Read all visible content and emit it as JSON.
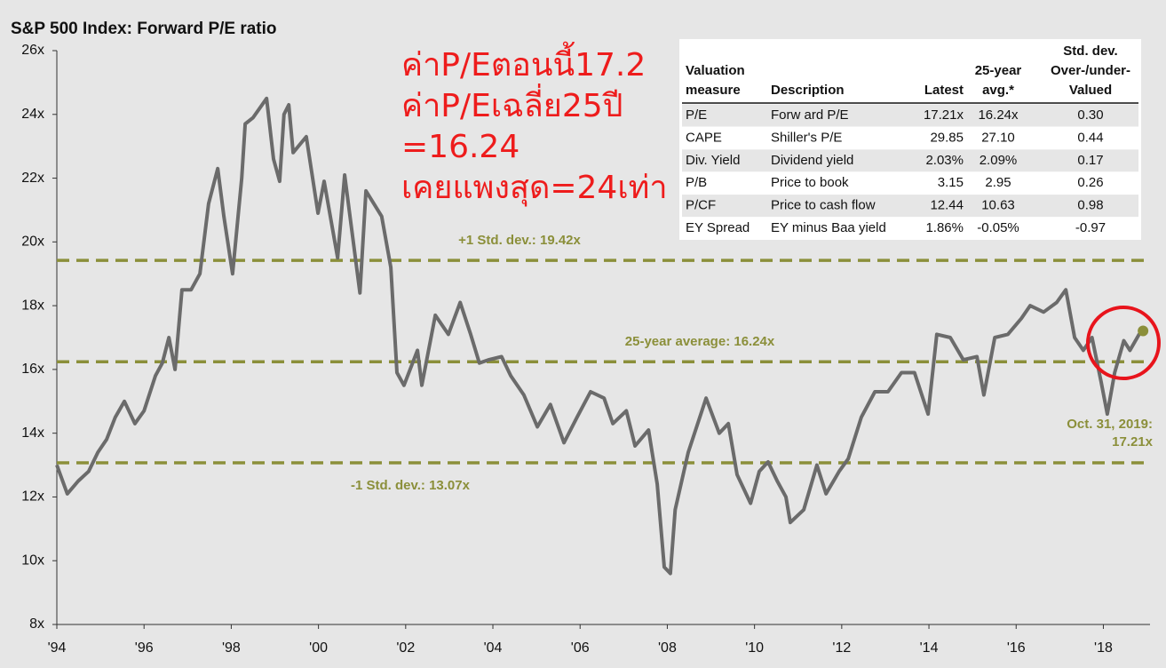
{
  "chart_data": {
    "type": "line",
    "title": "S&P 500 Index: Forward P/E ratio",
    "x": [
      1994.0,
      1994.24,
      1994.49,
      1994.73,
      1994.94,
      1995.14,
      1995.34,
      1995.55,
      1995.79,
      1996.0,
      1996.26,
      1996.42,
      1996.57,
      1996.71,
      1996.87,
      1997.08,
      1997.28,
      1997.48,
      1997.69,
      1997.83,
      1998.03,
      1998.24,
      1998.32,
      1998.5,
      1998.81,
      1998.97,
      1999.11,
      1999.21,
      1999.32,
      1999.42,
      1999.72,
      1999.99,
      2000.13,
      2000.44,
      2000.6,
      2000.95,
      2001.09,
      2001.45,
      2001.66,
      2001.8,
      2001.96,
      2002.27,
      2002.37,
      2002.68,
      2002.98,
      2003.25,
      2003.49,
      2003.69,
      2003.9,
      2004.2,
      2004.41,
      2004.71,
      2005.02,
      2005.32,
      2005.63,
      2005.93,
      2006.24,
      2006.55,
      2006.75,
      2007.06,
      2007.26,
      2007.57,
      2007.77,
      2007.93,
      2008.07,
      2008.18,
      2008.48,
      2008.89,
      2009.19,
      2009.4,
      2009.6,
      2009.91,
      2010.11,
      2010.31,
      2010.52,
      2010.72,
      2010.82,
      2011.13,
      2011.43,
      2011.64,
      2011.94,
      2012.15,
      2012.45,
      2012.76,
      2013.06,
      2013.37,
      2013.67,
      2013.98,
      2014.18,
      2014.49,
      2014.79,
      2015.1,
      2015.26,
      2015.51,
      2015.81,
      2016.12,
      2016.32,
      2016.63,
      2016.93,
      2017.14,
      2017.34,
      2017.54,
      2017.74,
      2017.95,
      2018.09,
      2018.26,
      2018.47,
      2018.61,
      2018.82,
      2018.91
    ],
    "series": [
      {
        "color": "#6b6b6b",
        "values": [
          13.0,
          12.1,
          12.5,
          12.8,
          13.4,
          13.8,
          14.5,
          15.0,
          14.3,
          14.7,
          15.8,
          16.2,
          17.0,
          16.0,
          18.5,
          18.5,
          19.0,
          21.2,
          22.3,
          20.8,
          19.0,
          22.0,
          23.7,
          23.9,
          24.5,
          22.6,
          21.9,
          24.0,
          24.3,
          22.8,
          23.3,
          20.9,
          21.9,
          19.5,
          22.1,
          18.4,
          21.6,
          20.8,
          19.2,
          15.9,
          15.5,
          16.6,
          15.5,
          17.7,
          17.1,
          18.1,
          17.1,
          16.2,
          16.3,
          16.4,
          15.8,
          15.2,
          14.2,
          14.9,
          13.7,
          14.5,
          15.3,
          15.1,
          14.3,
          14.7,
          13.6,
          14.1,
          12.4,
          9.8,
          9.6,
          11.6,
          13.4,
          15.1,
          14.0,
          14.3,
          12.7,
          11.8,
          12.8,
          13.1,
          12.5,
          12.0,
          11.2,
          11.6,
          13.0,
          12.1,
          12.8,
          13.2,
          14.5,
          15.3,
          15.3,
          15.9,
          15.9,
          14.6,
          17.1,
          17.0,
          16.3,
          16.4,
          15.2,
          17.0,
          17.1,
          17.6,
          18.0,
          17.8,
          18.1,
          18.5,
          17.0,
          16.6,
          17.0,
          15.6,
          14.6,
          15.9,
          16.9,
          16.6,
          17.1,
          17.21
        ]
      }
    ],
    "end_marker_color": "#8b8f3a",
    "xlim": [
      1994,
      2019.07
    ],
    "xticks": [
      {
        "value": 1994,
        "label": "'94"
      },
      {
        "value": 1996,
        "label": "'96"
      },
      {
        "value": 1998,
        "label": "'98"
      },
      {
        "value": 2000,
        "label": "'00"
      },
      {
        "value": 2002,
        "label": "'02"
      },
      {
        "value": 2004,
        "label": "'04"
      },
      {
        "value": 2006,
        "label": "'06"
      },
      {
        "value": 2008,
        "label": "'08"
      },
      {
        "value": 2010,
        "label": "'10"
      },
      {
        "value": 2012,
        "label": "'12"
      },
      {
        "value": 2014,
        "label": "'14"
      },
      {
        "value": 2016,
        "label": "'16"
      },
      {
        "value": 2018,
        "label": "'18"
      }
    ],
    "ylim": [
      8,
      26
    ],
    "yticks": [
      {
        "value": 8,
        "label": "8x"
      },
      {
        "value": 10,
        "label": "10x"
      },
      {
        "value": 12,
        "label": "12x"
      },
      {
        "value": 14,
        "label": "14x"
      },
      {
        "value": 16,
        "label": "16x"
      },
      {
        "value": 18,
        "label": "18x"
      },
      {
        "value": 20,
        "label": "20x"
      },
      {
        "value": 22,
        "label": "22x"
      },
      {
        "value": 24,
        "label": "24x"
      },
      {
        "value": 26,
        "label": "26x"
      }
    ],
    "reference_lines": [
      {
        "value": 19.42,
        "label": "+1 Std. dev.: 19.42x",
        "color": "#8b8f3a"
      },
      {
        "value": 16.24,
        "label": "25-year average: 16.24x",
        "color": "#8b8f3a"
      },
      {
        "value": 13.07,
        "label": "-1 Std. dev.: 13.07x",
        "color": "#8b8f3a"
      }
    ],
    "end_annotation": [
      "Oct. 31, 2019:",
      "17.21x"
    ],
    "overlay_text": [
      "ค่าP/Eตอนนี้17.2",
      "ค่าP/Eเฉลี่ย25ปี",
      "=16.24",
      "เคยแพงสุด=24เท่า"
    ]
  },
  "table": {
    "headers": [
      [
        "Valuation",
        "measure"
      ],
      [
        "Description"
      ],
      [
        "Latest"
      ],
      [
        "25-year",
        "avg.*"
      ],
      [
        "Std. dev.",
        "Over-/under-",
        "Valued"
      ]
    ],
    "rows": [
      [
        "P/E",
        "Forw ard P/E",
        "17.21x",
        "16.24x",
        "0.30"
      ],
      [
        "CAPE",
        "Shiller's P/E",
        "29.85",
        "27.10",
        "0.44"
      ],
      [
        "Div. Yield",
        "Dividend yield",
        "2.03%",
        "2.09%",
        "0.17"
      ],
      [
        "P/B",
        "Price to book",
        "3.15",
        "2.95",
        "0.26"
      ],
      [
        "P/CF",
        "Price to cash flow",
        "12.44",
        "10.63",
        "0.98"
      ],
      [
        "EY Spread",
        "EY minus Baa yield",
        "1.86%",
        "-0.05%",
        "-0.97"
      ]
    ]
  }
}
